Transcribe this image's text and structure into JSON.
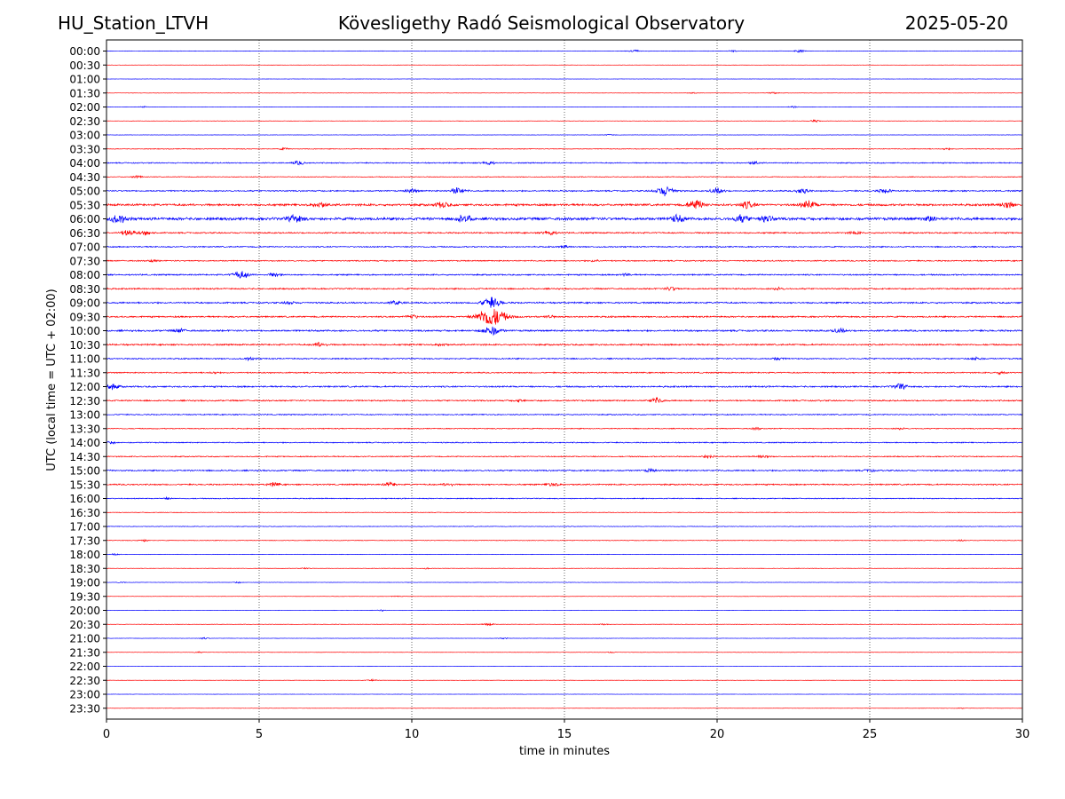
{
  "header": {
    "station": "HU_Station_LTVH",
    "title": "Kövesligethy Radó Seismological Observatory",
    "date": "2025-05-20"
  },
  "chart_data": {
    "type": "line",
    "title": "Kövesligethy Radó Seismological Observatory",
    "xlabel": "time in minutes",
    "ylabel": "UTC (local time = UTC + 02:00)",
    "xlim": [
      0,
      30
    ],
    "x_ticks": [
      "0",
      "5",
      "10",
      "15",
      "20",
      "25",
      "30"
    ],
    "grid": "vertical dotted lines at 5-minute intervals",
    "trace_colors": [
      "#0000ff",
      "#ff0000"
    ],
    "traces": [
      {
        "label": "00:00",
        "level": 0.15,
        "events": [
          [
            17.3,
            0.8
          ],
          [
            22.7,
            0.9
          ],
          [
            20.5,
            0.6
          ]
        ]
      },
      {
        "label": "00:30",
        "level": 0.08,
        "events": []
      },
      {
        "label": "01:00",
        "level": 0.08,
        "events": []
      },
      {
        "label": "01:30",
        "level": 0.12,
        "events": [
          [
            21.8,
            0.7
          ],
          [
            19.2,
            0.4
          ]
        ]
      },
      {
        "label": "02:00",
        "level": 0.12,
        "events": [
          [
            1.2,
            0.4
          ],
          [
            22.5,
            0.5
          ]
        ]
      },
      {
        "label": "02:30",
        "level": 0.12,
        "events": [
          [
            23.2,
            0.7
          ]
        ]
      },
      {
        "label": "03:00",
        "level": 0.12,
        "events": [
          [
            16.5,
            0.4
          ]
        ]
      },
      {
        "label": "03:30",
        "level": 0.25,
        "events": [
          [
            5.8,
            0.6
          ],
          [
            27.5,
            0.5
          ]
        ]
      },
      {
        "label": "04:00",
        "level": 0.35,
        "events": [
          [
            6.3,
            1.2
          ],
          [
            12.5,
            1.3
          ],
          [
            21.2,
            0.9
          ]
        ]
      },
      {
        "label": "04:30",
        "level": 0.25,
        "events": [
          [
            1.0,
            0.8
          ]
        ]
      },
      {
        "label": "05:00",
        "level": 0.45,
        "events": [
          [
            11.5,
            2.2
          ],
          [
            18.3,
            3.2
          ],
          [
            20.0,
            1.8
          ],
          [
            22.8,
            1.8
          ],
          [
            25.5,
            1.5
          ],
          [
            10.0,
            1.2
          ]
        ]
      },
      {
        "label": "05:30",
        "level": 0.7,
        "events": [
          [
            7.0,
            1.6
          ],
          [
            11.0,
            1.8
          ],
          [
            19.3,
            3.0
          ],
          [
            21.0,
            2.2
          ],
          [
            23.0,
            2.4
          ],
          [
            29.5,
            2.0
          ]
        ]
      },
      {
        "label": "06:00",
        "level": 0.9,
        "events": [
          [
            0.4,
            2.5
          ],
          [
            6.2,
            2.4
          ],
          [
            11.7,
            2.4
          ],
          [
            18.7,
            2.2
          ],
          [
            20.8,
            2.2
          ],
          [
            21.6,
            2.0
          ],
          [
            27.0,
            1.6
          ]
        ]
      },
      {
        "label": "06:30",
        "level": 0.45,
        "events": [
          [
            0.7,
            2.0
          ],
          [
            1.3,
            1.4
          ],
          [
            14.5,
            1.6
          ],
          [
            24.5,
            1.0
          ]
        ]
      },
      {
        "label": "07:00",
        "level": 0.4,
        "events": [
          [
            15.0,
            0.7
          ]
        ]
      },
      {
        "label": "07:30",
        "level": 0.4,
        "events": [
          [
            1.5,
            0.7
          ],
          [
            16.0,
            0.6
          ]
        ]
      },
      {
        "label": "08:00",
        "level": 0.45,
        "events": [
          [
            4.4,
            2.5
          ],
          [
            5.5,
            1.2
          ],
          [
            17.0,
            0.8
          ]
        ]
      },
      {
        "label": "08:30",
        "level": 0.45,
        "events": [
          [
            18.5,
            1.2
          ],
          [
            22.0,
            0.8
          ]
        ]
      },
      {
        "label": "09:00",
        "level": 0.5,
        "events": [
          [
            9.5,
            1.3
          ],
          [
            12.6,
            3.5
          ],
          [
            6.0,
            1.0
          ]
        ]
      },
      {
        "label": "09:30",
        "level": 0.5,
        "events": [
          [
            12.6,
            6.5
          ],
          [
            10.0,
            1.3
          ],
          [
            14.5,
            0.8
          ]
        ]
      },
      {
        "label": "10:00",
        "level": 0.55,
        "events": [
          [
            2.4,
            1.2
          ],
          [
            12.6,
            3.0
          ],
          [
            24.0,
            1.4
          ]
        ]
      },
      {
        "label": "10:30",
        "level": 0.5,
        "events": [
          [
            7.0,
            1.5
          ],
          [
            11.0,
            0.8
          ]
        ]
      },
      {
        "label": "11:00",
        "level": 0.4,
        "events": [
          [
            4.7,
            0.9
          ],
          [
            22.0,
            0.9
          ],
          [
            28.5,
            1.0
          ]
        ]
      },
      {
        "label": "11:30",
        "level": 0.4,
        "events": [
          [
            29.3,
            0.9
          ],
          [
            3.5,
            0.6
          ]
        ]
      },
      {
        "label": "12:00",
        "level": 0.5,
        "events": [
          [
            26.0,
            1.8
          ],
          [
            0.2,
            1.6
          ]
        ]
      },
      {
        "label": "12:30",
        "level": 0.45,
        "events": [
          [
            18.0,
            1.8
          ],
          [
            13.5,
            0.8
          ]
        ]
      },
      {
        "label": "13:00",
        "level": 0.35,
        "events": []
      },
      {
        "label": "13:30",
        "level": 0.3,
        "events": [
          [
            21.3,
            0.7
          ],
          [
            26.0,
            0.6
          ]
        ]
      },
      {
        "label": "14:00",
        "level": 0.35,
        "events": [
          [
            0.1,
            0.8
          ]
        ]
      },
      {
        "label": "14:30",
        "level": 0.35,
        "events": [
          [
            19.7,
            1.2
          ],
          [
            21.5,
            1.0
          ]
        ]
      },
      {
        "label": "15:00",
        "level": 0.45,
        "events": [
          [
            17.8,
            0.9
          ],
          [
            25.0,
            0.7
          ]
        ]
      },
      {
        "label": "15:30",
        "level": 0.45,
        "events": [
          [
            5.5,
            1.2
          ],
          [
            9.3,
            1.4
          ],
          [
            11.2,
            1.0
          ],
          [
            14.6,
            1.2
          ]
        ]
      },
      {
        "label": "16:00",
        "level": 0.3,
        "events": [
          [
            2.0,
            0.6
          ]
        ]
      },
      {
        "label": "16:30",
        "level": 0.2,
        "events": []
      },
      {
        "label": "17:00",
        "level": 0.2,
        "events": []
      },
      {
        "label": "17:30",
        "level": 0.2,
        "events": [
          [
            1.2,
            0.7
          ],
          [
            28.0,
            0.4
          ]
        ]
      },
      {
        "label": "18:00",
        "level": 0.15,
        "events": [
          [
            0.3,
            0.5
          ]
        ]
      },
      {
        "label": "18:30",
        "level": 0.15,
        "events": [
          [
            6.5,
            0.5
          ],
          [
            10.5,
            0.4
          ]
        ]
      },
      {
        "label": "19:00",
        "level": 0.12,
        "events": [
          [
            0.5,
            0.4
          ],
          [
            4.3,
            0.4
          ]
        ]
      },
      {
        "label": "19:30",
        "level": 0.1,
        "events": [
          [
            9.5,
            0.4
          ]
        ]
      },
      {
        "label": "20:00",
        "level": 0.12,
        "events": [
          [
            9.0,
            0.4
          ]
        ]
      },
      {
        "label": "20:30",
        "level": 0.15,
        "events": [
          [
            12.5,
            0.8
          ],
          [
            16.3,
            0.5
          ]
        ]
      },
      {
        "label": "21:00",
        "level": 0.1,
        "events": [
          [
            3.2,
            0.5
          ],
          [
            13.0,
            0.5
          ]
        ]
      },
      {
        "label": "21:30",
        "level": 0.1,
        "events": [
          [
            3.0,
            0.4
          ],
          [
            16.5,
            0.4
          ]
        ]
      },
      {
        "label": "22:00",
        "level": 0.08,
        "events": []
      },
      {
        "label": "22:30",
        "level": 0.1,
        "events": [
          [
            8.7,
            0.6
          ]
        ]
      },
      {
        "label": "23:00",
        "level": 0.08,
        "events": []
      },
      {
        "label": "23:30",
        "level": 0.08,
        "events": [
          [
            28.0,
            0.3
          ]
        ]
      }
    ]
  }
}
